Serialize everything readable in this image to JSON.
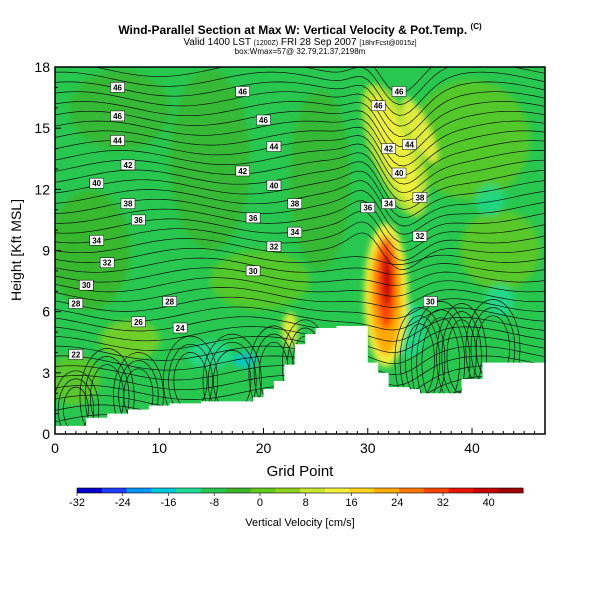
{
  "chart_data": {
    "type": "heatmap",
    "title_main": "Wind-Parallel Section at Max W: Vertical Velocity & Pot.Temp.",
    "title_mark": "(C)",
    "subtitle_main": "Valid 1400 LST",
    "subtitle_small1": "(1200Z)",
    "subtitle_date": "FRI 28 Sep 2007",
    "subtitle_small2": "[18hrFcst@0015z]",
    "info": "box:Wmax=57@ 32.79,21.37,2198m",
    "xlabel": "Grid Point",
    "ylabel": "Height [Kft MSL]",
    "xlim": [
      0,
      47
    ],
    "ylim": [
      0,
      18
    ],
    "x_ticks": [
      0,
      10,
      20,
      30,
      40
    ],
    "y_ticks": [
      0,
      3,
      6,
      9,
      12,
      15,
      18
    ],
    "colorbar": {
      "label": "Vertical Velocity [cm/s]",
      "ticks": [
        -32,
        -24,
        -16,
        -8,
        0,
        8,
        16,
        24,
        32,
        40
      ],
      "range": [
        -32,
        46
      ],
      "colors": [
        "#0000c8",
        "#1e3cff",
        "#0a96ff",
        "#00c8dc",
        "#1edc96",
        "#28c850",
        "#3cb428",
        "#64c81e",
        "#8cd21e",
        "#c8e632",
        "#f0f03c",
        "#ffd21e",
        "#ffaa00",
        "#ff7800",
        "#ff4600",
        "#e61400",
        "#c80000",
        "#a00000"
      ]
    },
    "terrain": [
      [
        0,
        0.4
      ],
      [
        2,
        0.4
      ],
      [
        3,
        0.8
      ],
      [
        5,
        1.0
      ],
      [
        7,
        1.2
      ],
      [
        9,
        1.4
      ],
      [
        11,
        1.5
      ],
      [
        14,
        1.6
      ],
      [
        16,
        1.6
      ],
      [
        18,
        1.6
      ],
      [
        19,
        1.8
      ],
      [
        20,
        2.2
      ],
      [
        21,
        2.6
      ],
      [
        22,
        3.4
      ],
      [
        23,
        4.4
      ],
      [
        24,
        4.9
      ],
      [
        25,
        5.2
      ],
      [
        27,
        5.3
      ],
      [
        29,
        5.3
      ],
      [
        30,
        3.5
      ],
      [
        31,
        3.0
      ],
      [
        32,
        2.3
      ],
      [
        34,
        2.2
      ],
      [
        35,
        2.0
      ],
      [
        37,
        2.0
      ],
      [
        39,
        2.7
      ],
      [
        41,
        3.5
      ],
      [
        47,
        3.5
      ]
    ],
    "theta_labels": [
      {
        "x": 6,
        "y": 17.0,
        "v": "46"
      },
      {
        "x": 18,
        "y": 16.8,
        "v": "46"
      },
      {
        "x": 33,
        "y": 16.8,
        "v": "46"
      },
      {
        "x": 6,
        "y": 15.6,
        "v": "46"
      },
      {
        "x": 20,
        "y": 15.4,
        "v": "46"
      },
      {
        "x": 31,
        "y": 16.1,
        "v": "46"
      },
      {
        "x": 6,
        "y": 14.4,
        "v": "44"
      },
      {
        "x": 21,
        "y": 14.1,
        "v": "44"
      },
      {
        "x": 34,
        "y": 14.2,
        "v": "44"
      },
      {
        "x": 32,
        "y": 14.0,
        "v": "42"
      },
      {
        "x": 7,
        "y": 13.2,
        "v": "42"
      },
      {
        "x": 18,
        "y": 12.9,
        "v": "42"
      },
      {
        "x": 33,
        "y": 12.8,
        "v": "40"
      },
      {
        "x": 4,
        "y": 12.3,
        "v": "40"
      },
      {
        "x": 21,
        "y": 12.2,
        "v": "40"
      },
      {
        "x": 35,
        "y": 11.6,
        "v": "38"
      },
      {
        "x": 7,
        "y": 11.3,
        "v": "38"
      },
      {
        "x": 23,
        "y": 11.3,
        "v": "38"
      },
      {
        "x": 30,
        "y": 11.1,
        "v": "36"
      },
      {
        "x": 32,
        "y": 11.3,
        "v": "34"
      },
      {
        "x": 8,
        "y": 10.5,
        "v": "36"
      },
      {
        "x": 19,
        "y": 10.6,
        "v": "36"
      },
      {
        "x": 23,
        "y": 9.9,
        "v": "34"
      },
      {
        "x": 35,
        "y": 9.7,
        "v": "32"
      },
      {
        "x": 4,
        "y": 9.5,
        "v": "34"
      },
      {
        "x": 21,
        "y": 9.2,
        "v": "32"
      },
      {
        "x": 5,
        "y": 8.4,
        "v": "32"
      },
      {
        "x": 19,
        "y": 8.0,
        "v": "30"
      },
      {
        "x": 3,
        "y": 7.3,
        "v": "30"
      },
      {
        "x": 36,
        "y": 6.5,
        "v": "30"
      },
      {
        "x": 2,
        "y": 6.4,
        "v": "28"
      },
      {
        "x": 11,
        "y": 6.5,
        "v": "28"
      },
      {
        "x": 8,
        "y": 5.5,
        "v": "26"
      },
      {
        "x": 12,
        "y": 5.2,
        "v": "24"
      },
      {
        "x": 2,
        "y": 3.9,
        "v": "22"
      }
    ]
  }
}
